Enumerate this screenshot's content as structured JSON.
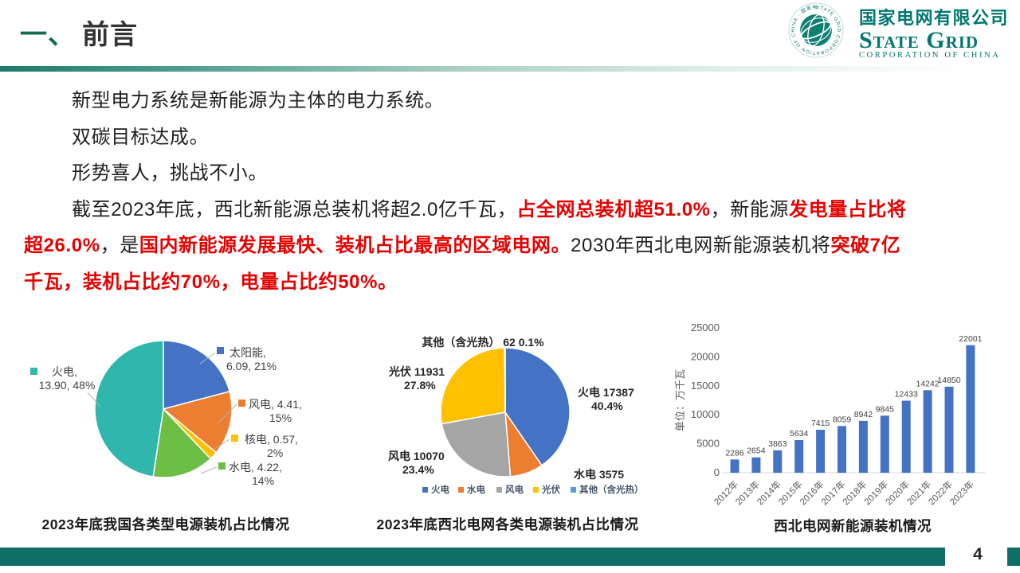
{
  "header": {
    "section_marker": "一、",
    "title": "前言"
  },
  "logo": {
    "cn": "国家电网有限公司",
    "en": "State Grid",
    "sub": "CORPORATION OF CHINA",
    "ring_text": "STATE GRID CORPORATION OF CHINA · 国家电网公司 ·"
  },
  "body": {
    "lines": [
      {
        "indent": true,
        "runs": [
          {
            "text": "新型电力系统是新能源为主体的电力系统。",
            "red": false
          }
        ]
      },
      {
        "indent": true,
        "runs": [
          {
            "text": "双碳目标达成。",
            "red": false
          }
        ]
      },
      {
        "indent": true,
        "runs": [
          {
            "text": "形势喜人，挑战不小。",
            "red": false
          }
        ]
      },
      {
        "indent": true,
        "runs": [
          {
            "text": "截至2023年底，西北新能源总装机将超2.0亿千瓦，",
            "red": false
          },
          {
            "text": "占全网总装机超51.0%",
            "red": true
          },
          {
            "text": "，新能源",
            "red": false
          },
          {
            "text": "发电量占比将",
            "red": true
          }
        ]
      },
      {
        "indent": false,
        "runs": [
          {
            "text": "超26.0%",
            "red": true
          },
          {
            "text": "，是",
            "red": false
          },
          {
            "text": "国内新能源发展最快、装机占比最高的区域电网。",
            "red": true
          },
          {
            "text": "2030年西北电网新能源装机将",
            "red": false
          },
          {
            "text": "突破7亿",
            "red": true
          }
        ]
      },
      {
        "indent": false,
        "runs": [
          {
            "text": "千瓦，装机占比约70%，电量占比约50%。",
            "red": true
          }
        ]
      }
    ]
  },
  "chart_data": [
    {
      "type": "pie",
      "title": "2023年底我国各类型电源装机占比情况",
      "start_angle": "top",
      "direction": "clockwise",
      "slices": [
        {
          "label": "太阳能",
          "value": 6.09,
          "pct": "21%",
          "color": "#4472C4",
          "label_lines": [
            "太阳能,",
            "6.09, 21%"
          ]
        },
        {
          "label": "风电",
          "value": 4.41,
          "pct": "15%",
          "color": "#ED7D31",
          "label_lines": [
            "风电, 4.41,",
            "15%"
          ]
        },
        {
          "label": "核电",
          "value": 0.57,
          "pct": "2%",
          "color": "#FFC000",
          "label_lines": [
            "核电, 0.57,",
            "2%"
          ]
        },
        {
          "label": "水电",
          "value": 4.22,
          "pct": "14%",
          "color": "#6CBE45",
          "label_lines": [
            "水电, 4.22,",
            "14%"
          ]
        },
        {
          "label": "火电",
          "value": 13.9,
          "pct": "48%",
          "color": "#2FB6AD",
          "label_lines": [
            "火电,",
            "13.90, 48%"
          ]
        }
      ]
    },
    {
      "type": "pie",
      "title": "2023年底西北电网各类电源装机占比情况",
      "start_angle": "top",
      "direction": "clockwise",
      "slices": [
        {
          "label": "火电",
          "value": 17387,
          "pct": "40.4%",
          "color": "#4472C4",
          "label_lines": [
            "火电 17387",
            "40.4%"
          ]
        },
        {
          "label": "水电",
          "value": 3575,
          "pct": "",
          "color": "#ED7D31",
          "label_lines": [
            "水电 3575"
          ]
        },
        {
          "label": "风电",
          "value": 10070,
          "pct": "23.4%",
          "color": "#A5A5A5",
          "label_lines": [
            "风电 10070",
            "23.4%"
          ]
        },
        {
          "label": "光伏",
          "value": 11931,
          "pct": "27.8%",
          "color": "#FFC000",
          "label_lines": [
            "光伏 11931",
            "27.8%"
          ]
        },
        {
          "label": "其他（含光热）",
          "value": 62,
          "pct": "0.1%",
          "color": "#5B9BD5",
          "label_lines": [
            "其他（含光热） 62   0.1%"
          ]
        }
      ],
      "legend": [
        "火电",
        "水电",
        "风电",
        "光伏",
        "其他（含光热）"
      ],
      "legend_position": "bottom"
    },
    {
      "type": "bar",
      "title": "西北电网新能源装机情况",
      "ylabel": "单位：万千瓦",
      "xlabel": "",
      "categories": [
        "2012年",
        "2013年",
        "2014年",
        "2015年",
        "2016年",
        "2017年",
        "2018年",
        "2019年",
        "2020年",
        "2021年",
        "2022年",
        "2023年"
      ],
      "values": [
        2286,
        2654,
        3863,
        5634,
        7415,
        8059,
        8942,
        9845,
        12433,
        14242,
        14850,
        22001
      ],
      "yticks": [
        0,
        5000,
        10000,
        15000,
        20000,
        25000
      ],
      "ylim": [
        0,
        25000
      ],
      "grid": false,
      "bar_color": "#4472C4"
    }
  ],
  "footer": {
    "page_number": "4"
  },
  "colors": {
    "accent_red": "#e60000",
    "header_green": "#166b4d",
    "footer_teal": "#0f6f68",
    "logo_teal": "#00786e"
  }
}
